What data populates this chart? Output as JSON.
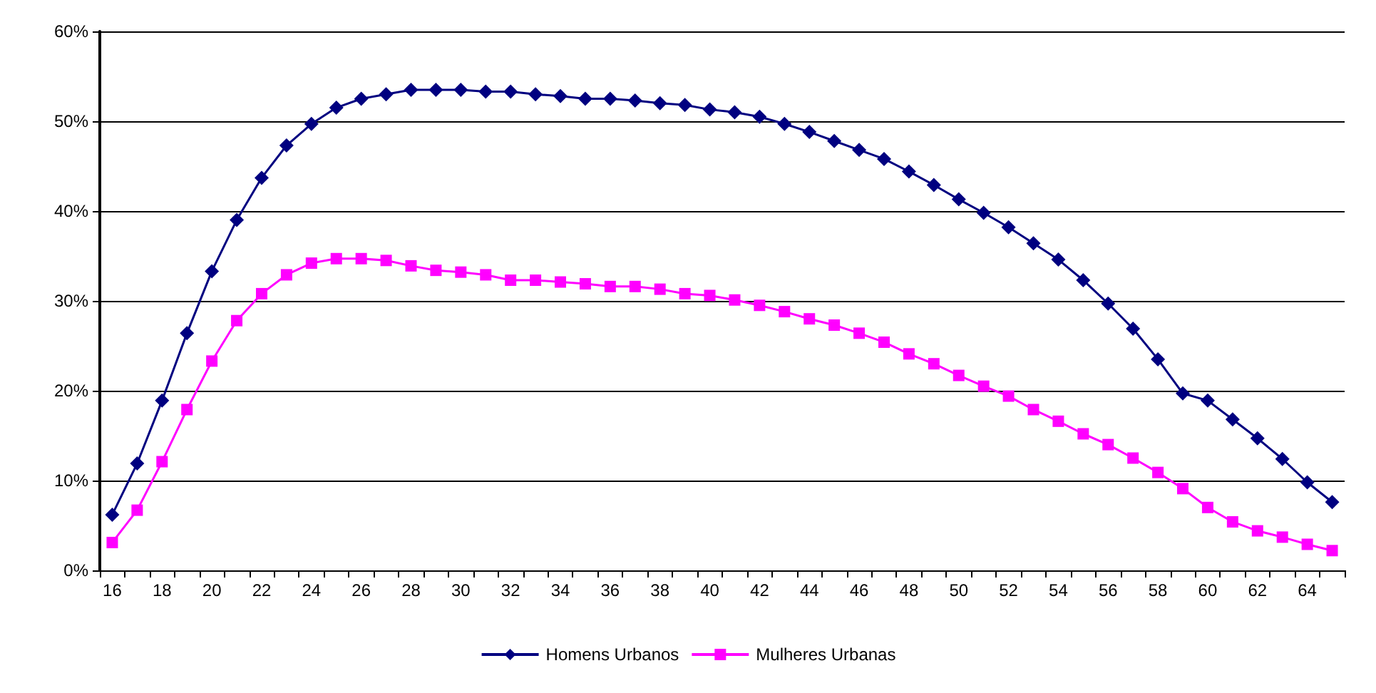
{
  "chart_data": {
    "type": "line",
    "categories": [
      "16",
      null,
      "18",
      null,
      "20",
      null,
      "22",
      null,
      "24",
      null,
      "26",
      null,
      "28",
      null,
      "30",
      null,
      "32",
      null,
      "34",
      null,
      "36",
      null,
      "38",
      null,
      "40",
      null,
      "42",
      null,
      "44",
      null,
      "46",
      null,
      "48",
      null,
      "50",
      null,
      "52",
      null,
      "54",
      null,
      "56",
      null,
      "58",
      null,
      "60",
      null,
      "62",
      null,
      "64",
      null
    ],
    "series": [
      {
        "name": "Homens Urbanos",
        "color": "#000080",
        "marker": "diamond",
        "values": [
          6.2,
          11.9,
          18.9,
          26.4,
          33.3,
          39,
          43.7,
          47.3,
          49.7,
          51.5,
          52.5,
          53,
          53.5,
          53.5,
          53.5,
          53.3,
          53.3,
          53,
          52.8,
          52.5,
          52.5,
          52.3,
          52,
          51.8,
          51.3,
          51,
          50.5,
          49.7,
          48.8,
          47.8,
          46.8,
          45.8,
          44.4,
          42.9,
          41.3,
          39.8,
          38.2,
          36.4,
          34.6,
          32.3,
          29.7,
          26.9,
          23.5,
          19.7,
          18.9,
          16.8,
          14.7,
          12.4,
          9.8,
          7.6
        ]
      },
      {
        "name": "Mulheres Urbanas",
        "color": "#ff00ff",
        "marker": "square",
        "values": [
          3.1,
          6.7,
          12.1,
          17.9,
          23.3,
          27.8,
          30.8,
          32.9,
          34.2,
          34.7,
          34.7,
          34.5,
          33.9,
          33.4,
          33.2,
          32.9,
          32.3,
          32.3,
          32.1,
          31.9,
          31.6,
          31.6,
          31.3,
          30.8,
          30.6,
          30.1,
          29.5,
          28.8,
          28,
          27.3,
          26.4,
          25.4,
          24.1,
          23,
          21.7,
          20.5,
          19.4,
          17.9,
          16.6,
          15.2,
          14,
          12.5,
          10.9,
          9.1,
          7,
          5.4,
          4.4,
          3.7,
          2.9,
          2.2
        ]
      }
    ],
    "ylim": [
      0,
      60
    ],
    "yticks": [
      {
        "value": 0,
        "label": "0%"
      },
      {
        "value": 10,
        "label": "10%"
      },
      {
        "value": 20,
        "label": "20%"
      },
      {
        "value": 30,
        "label": "30%"
      },
      {
        "value": 40,
        "label": "40%"
      },
      {
        "value": 50,
        "label": "50%"
      },
      {
        "value": 60,
        "label": "60%"
      }
    ],
    "grid": "y",
    "legend": "bottom"
  }
}
